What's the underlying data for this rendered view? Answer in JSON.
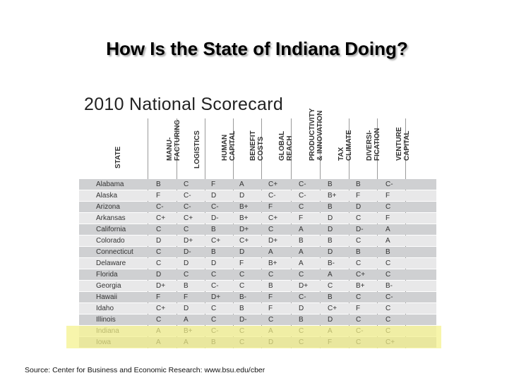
{
  "slide": {
    "title": "How Is the State of Indiana Doing?",
    "source": "Source: Center for Business and Economic Research: www.bsu.edu/cber"
  },
  "scorecard": {
    "title": "2010 National Scorecard",
    "state_header": "STATE",
    "column_headers": [
      [
        "MANU-",
        "FACTURING"
      ],
      [
        "LOGISTICS"
      ],
      [
        "HUMAN",
        "CAPITAL"
      ],
      [
        "BENEFIT",
        "COSTS"
      ],
      [
        "GLOBAL",
        "REACH"
      ],
      [
        "PRODUCTIVITY",
        "& INNOVATION"
      ],
      [
        "TAX",
        "CLIMATE"
      ],
      [
        "DIVERSI-",
        "FICATION"
      ],
      [
        "VENTURE",
        "CAPITAL"
      ]
    ],
    "rows": [
      {
        "state": "Alabama",
        "grades": [
          "B",
          "C",
          "F",
          "A",
          "C+",
          "C-",
          "B",
          "B",
          "C-"
        ]
      },
      {
        "state": "Alaska",
        "grades": [
          "F",
          "C-",
          "D",
          "D",
          "C-",
          "C-",
          "B+",
          "F",
          "F"
        ]
      },
      {
        "state": "Arizona",
        "grades": [
          "C-",
          "C-",
          "C-",
          "B+",
          "F",
          "C",
          "B",
          "D",
          "C"
        ]
      },
      {
        "state": "Arkansas",
        "grades": [
          "C+",
          "C+",
          "D-",
          "B+",
          "C+",
          "F",
          "D",
          "C",
          "F"
        ]
      },
      {
        "state": "California",
        "grades": [
          "C",
          "C",
          "B",
          "D+",
          "C",
          "A",
          "D",
          "D-",
          "A"
        ]
      },
      {
        "state": "Colorado",
        "grades": [
          "D",
          "D+",
          "C+",
          "C+",
          "D+",
          "B",
          "B",
          "C",
          "A"
        ]
      },
      {
        "state": "Connecticut",
        "grades": [
          "C",
          "D-",
          "B",
          "D",
          "A",
          "A",
          "D",
          "B",
          "B"
        ]
      },
      {
        "state": "Delaware",
        "grades": [
          "C",
          "D",
          "D",
          "F",
          "B+",
          "A",
          "B-",
          "C",
          "C"
        ]
      },
      {
        "state": "Florida",
        "grades": [
          "D",
          "C",
          "C",
          "C",
          "C",
          "C",
          "A",
          "C+",
          "C"
        ]
      },
      {
        "state": "Georgia",
        "grades": [
          "D+",
          "B",
          "C-",
          "C",
          "B",
          "D+",
          "C",
          "B+",
          "B-"
        ]
      },
      {
        "state": "Hawaii",
        "grades": [
          "F",
          "F",
          "D+",
          "B-",
          "F",
          "C-",
          "B",
          "C",
          "C-"
        ]
      },
      {
        "state": "Idaho",
        "grades": [
          "C+",
          "D",
          "C",
          "B",
          "F",
          "D",
          "C+",
          "F",
          "C"
        ]
      },
      {
        "state": "Illinois",
        "grades": [
          "C",
          "A",
          "C",
          "D-",
          "C",
          "B",
          "D",
          "C",
          "C"
        ]
      },
      {
        "state": "Indiana",
        "grades": [
          "A",
          "B+",
          "C-",
          "C",
          "A",
          "C",
          "A",
          "C-",
          "C"
        ]
      },
      {
        "state": "Iowa",
        "grades": [
          "A",
          "A",
          "B",
          "C",
          "D",
          "C",
          "F",
          "C",
          "C+"
        ]
      }
    ],
    "highlighted_state": "Indiana",
    "colors": {
      "odd_row": "#cfd0d2",
      "even_row": "#e8e8e9",
      "highlight": "#f4f187"
    }
  }
}
